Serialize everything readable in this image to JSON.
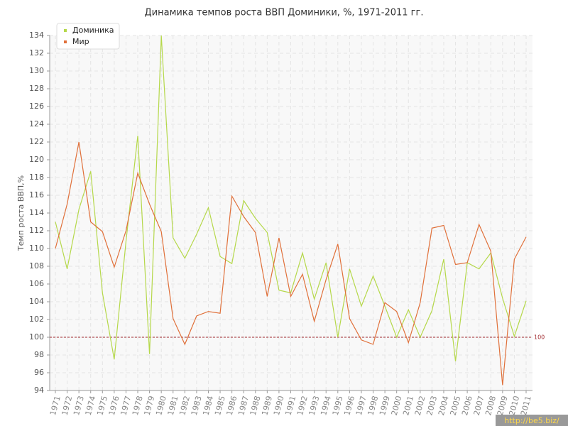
{
  "chart_data": {
    "type": "line",
    "title": "Динамика темпов роста ВВП Доминики, %, 1971-2011 гг.",
    "y_label": "Темп роста ВВП,%",
    "categories": [
      "1971",
      "1972",
      "1973",
      "1974",
      "1975",
      "1976",
      "1977",
      "1978",
      "1979",
      "1980",
      "1981",
      "1982",
      "1983",
      "1984",
      "1985",
      "1986",
      "1987",
      "1988",
      "1989",
      "1990",
      "1991",
      "1992",
      "1993",
      "1994",
      "1995",
      "1996",
      "1997",
      "1998",
      "1999",
      "2000",
      "2001",
      "2002",
      "2003",
      "2004",
      "2005",
      "2006",
      "2007",
      "2008",
      "2009",
      "2010",
      "2011"
    ],
    "series": [
      {
        "name": "Доминика",
        "color": "#b5d84a",
        "values": [
          113.0,
          107.7,
          114.4,
          118.7,
          105.0,
          97.5,
          110.8,
          122.7,
          98.1,
          134.0,
          111.2,
          108.9,
          111.6,
          114.6,
          109.1,
          108.3,
          115.4,
          113.4,
          111.8,
          105.3,
          105.0,
          109.5,
          104.3,
          108.4,
          100.0,
          107.7,
          103.5,
          106.9,
          103.5,
          100.0,
          103.1,
          100.0,
          103.0,
          108.8,
          97.3,
          108.4,
          107.7,
          109.5,
          104.4,
          100.1,
          104.1
        ]
      },
      {
        "name": "Мир",
        "color": "#e0703a",
        "values": [
          110.0,
          115.0,
          122.0,
          113.0,
          111.9,
          107.9,
          112.0,
          118.5,
          115.0,
          111.9,
          102.1,
          99.2,
          102.4,
          102.9,
          102.7,
          115.9,
          113.6,
          111.8,
          104.6,
          111.2,
          104.6,
          107.1,
          101.8,
          106.5,
          110.5,
          102.1,
          99.7,
          99.2,
          103.9,
          102.9,
          99.4,
          103.9,
          112.3,
          112.6,
          108.2,
          108.4,
          112.7,
          109.7,
          94.6,
          108.8,
          111.3
        ]
      }
    ],
    "ylim": [
      94,
      134
    ],
    "yticks": [
      94,
      96,
      98,
      100,
      102,
      104,
      106,
      108,
      110,
      112,
      114,
      116,
      118,
      120,
      122,
      124,
      126,
      128,
      130,
      132,
      134
    ],
    "grid": true,
    "reference_line": 100,
    "reference_color": "#a0282d",
    "legend": "top-left",
    "watermark": "http://be5.biz/"
  }
}
